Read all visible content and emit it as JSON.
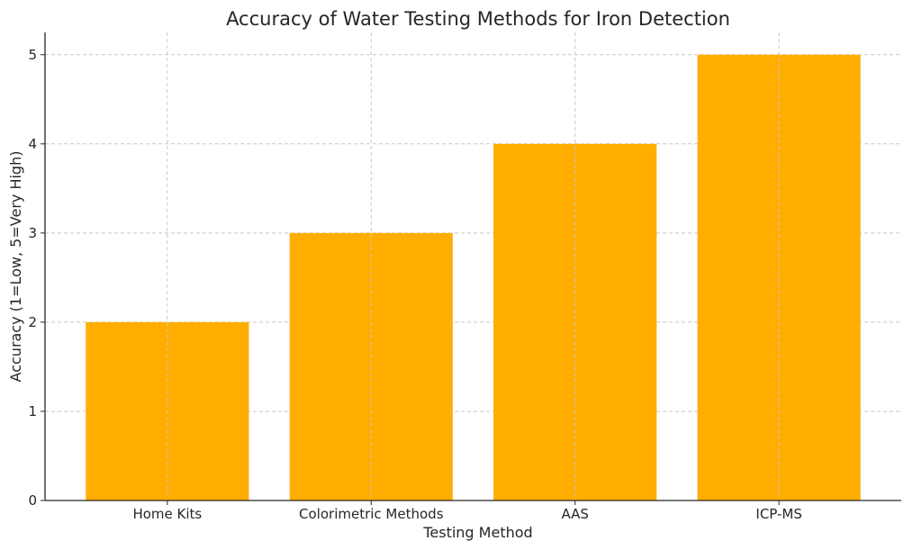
{
  "chart_data": {
    "type": "bar",
    "title": "Accuracy of Water Testing Methods for Iron Detection",
    "xlabel": "Testing Method",
    "ylabel": "Accuracy (1=Low, 5=Very High)",
    "categories": [
      "Home Kits",
      "Colorimetric Methods",
      "AAS",
      "ICP-MS"
    ],
    "values": [
      2,
      3,
      4,
      5
    ],
    "ylim": [
      0,
      5.25
    ],
    "yticks": [
      "0",
      "1",
      "2",
      "3",
      "4",
      "5"
    ],
    "bar_color": "#FFAE00",
    "grid": true
  }
}
